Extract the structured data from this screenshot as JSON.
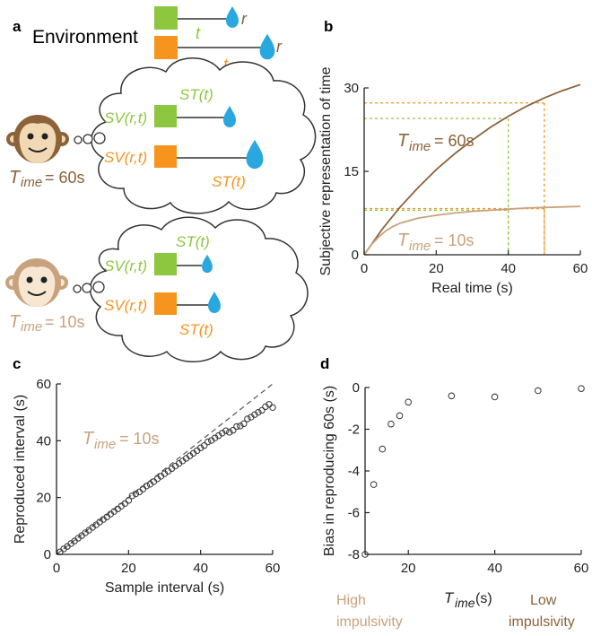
{
  "colors": {
    "green": "#8dc63f",
    "orange": "#f7941d",
    "brown": "#8c6239",
    "tan": "#c8a27c",
    "drop": "#29a8e0",
    "axis": "#222222"
  },
  "panel_a": {
    "label": "a",
    "environment": "Environment",
    "t": "t",
    "r": "r",
    "sv": "SV(r,t)",
    "st": "ST(t)",
    "monkey1": {
      "T": "T",
      "sub": "ime",
      "eq": "= 60s"
    },
    "monkey2": {
      "T": "T",
      "sub": "ime",
      "eq": "= 10s"
    }
  },
  "panel_b": {
    "label": "b",
    "ann_60": {
      "T": "T",
      "sub": "ime",
      "eq": "= 60s"
    },
    "ann_10": {
      "T": "T",
      "sub": "ime",
      "eq": "= 10s"
    }
  },
  "panel_c": {
    "label": "c",
    "ann": {
      "T": "T",
      "sub": "ime",
      "eq": "= 10s"
    }
  },
  "panel_d": {
    "label": "d",
    "xlab_T": "T",
    "xlab_sub": "ime",
    "xlab_unit": " (s)",
    "high1": "High",
    "high2": "impulsivity",
    "low1": "Low",
    "low2": "impulsivity"
  },
  "chart_data": [
    {
      "type": "line",
      "panel": "b",
      "xlabel": "Real time (s)",
      "ylabel": "Subjective representation of time",
      "xlim": [
        0,
        60
      ],
      "ylim": [
        0,
        30
      ],
      "xticks": [
        "0",
        "20",
        "40",
        "60"
      ],
      "yticks": [
        "0",
        "15",
        "30"
      ],
      "series": [
        {
          "x": [
            0,
            5,
            10,
            15,
            20,
            25,
            30,
            35,
            40,
            45,
            50,
            55,
            60
          ],
          "y": [
            0,
            4.6,
            8.6,
            12.1,
            15.3,
            18.1,
            20.6,
            22.9,
            24.9,
            26.7,
            28.2,
            29.5,
            30.6
          ]
        },
        {
          "x": [
            0,
            2,
            4,
            6,
            8,
            10,
            15,
            20,
            25,
            30,
            35,
            40,
            45,
            50,
            55,
            60
          ],
          "y": [
            0,
            1.8,
            3.2,
            4.3,
            5.1,
            5.7,
            6.6,
            7.1,
            7.5,
            7.8,
            8.0,
            8.2,
            8.4,
            8.5,
            8.6,
            8.7
          ]
        }
      ],
      "guides": [
        {
          "x": 40,
          "y": 24.5
        },
        {
          "x": 50,
          "y": 27.3
        },
        {
          "x": 40,
          "y": 8.0
        },
        {
          "x": 50,
          "y": 8.3
        }
      ]
    },
    {
      "type": "scatter",
      "panel": "c",
      "xlabel": "Sample interval (s)",
      "ylabel": "Reproduced interval (s)",
      "xlim": [
        0,
        60
      ],
      "ylim": [
        0,
        60
      ],
      "xticks": [
        "0",
        "20",
        "40",
        "60"
      ],
      "yticks": [
        "0",
        "20",
        "40",
        "60"
      ],
      "x": [
        1,
        2,
        3,
        4,
        5,
        6,
        7,
        8,
        9,
        10,
        11,
        12,
        13,
        14,
        15,
        16,
        17,
        18,
        19,
        20,
        21,
        22,
        23,
        24,
        25,
        26,
        27,
        28,
        29,
        30,
        31,
        32,
        33,
        34,
        35,
        36,
        37,
        38,
        39,
        40,
        41,
        42,
        43,
        44,
        45,
        46,
        47,
        48,
        49,
        50,
        51,
        52,
        53,
        54,
        55,
        56,
        57,
        58,
        59,
        60
      ],
      "y": [
        0.9,
        1.9,
        2.8,
        3.8,
        4.7,
        5.7,
        6.6,
        7.6,
        8.5,
        9.5,
        10.4,
        11.4,
        12.3,
        13.2,
        14.2,
        15.1,
        16.0,
        17.0,
        17.9,
        19.0,
        20.6,
        21.3,
        22.0,
        23.0,
        24.1,
        24.7,
        25.6,
        26.6,
        27.5,
        28.4,
        29.3,
        30.2,
        31.1,
        32.0,
        32.9,
        33.8,
        34.7,
        35.6,
        36.5,
        37.5,
        38.3,
        39.6,
        40.1,
        41.0,
        41.8,
        42.7,
        43.5,
        43.0,
        43.7,
        45.0,
        45.2,
        46.0,
        47.7,
        48.3,
        49.2,
        50.0,
        50.7,
        52.0,
        52.8,
        51.7
      ],
      "identity_line": true
    },
    {
      "type": "scatter",
      "panel": "d",
      "ylabel": "Bias in reproducing 60s (s)",
      "xlim": [
        10,
        60
      ],
      "ylim": [
        -8,
        0
      ],
      "xticks": [
        "20",
        "40",
        "60"
      ],
      "yticks": [
        "0",
        "-2",
        "-4",
        "-6",
        "-8"
      ],
      "x": [
        10,
        12,
        14,
        16,
        18,
        20,
        30,
        40,
        50,
        60
      ],
      "y": [
        -8.0,
        -4.65,
        -2.95,
        -1.75,
        -1.35,
        -0.7,
        -0.4,
        -0.45,
        -0.15,
        -0.05
      ]
    }
  ]
}
